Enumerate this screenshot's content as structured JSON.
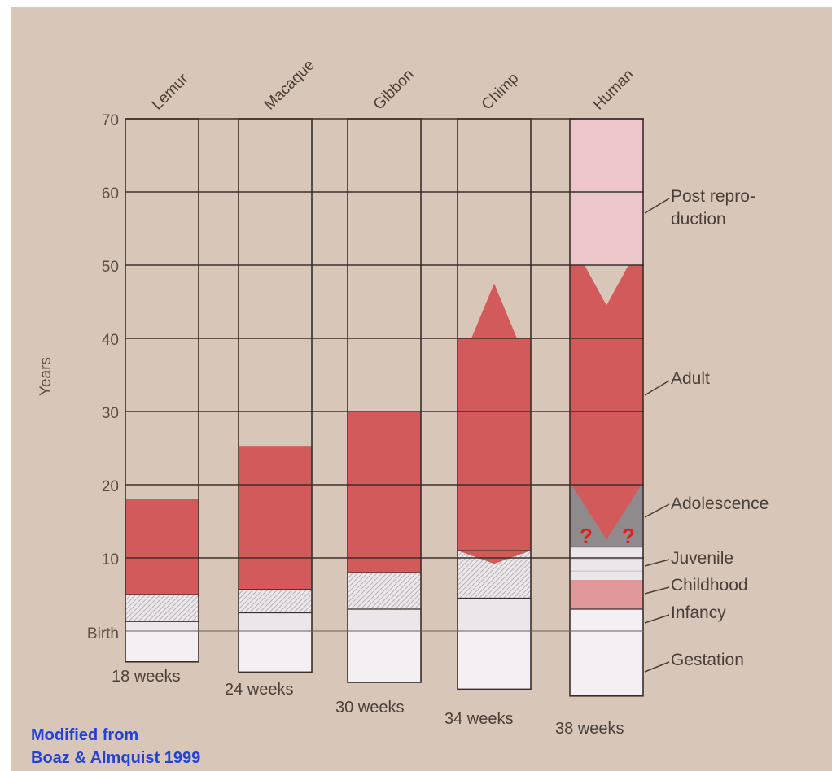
{
  "chart_data": {
    "type": "bar",
    "title": "",
    "ylabel": "Years",
    "ylim": [
      0,
      70
    ],
    "yticks": [
      "70",
      "60",
      "50",
      "40",
      "30",
      "20",
      "10"
    ],
    "birth_label": "Birth",
    "categories": [
      "Lemur",
      "Macaque",
      "Gibbon",
      "Chimp",
      "Human"
    ],
    "gestation_labels": [
      "18 weeks",
      "24 weeks",
      "30 weeks",
      "34 weeks",
      "38 weeks"
    ],
    "gestation_weeks": [
      18,
      24,
      30,
      34,
      38
    ],
    "stages": [
      "Post repro-\nduction",
      "Adult",
      "Adolescence",
      "Juvenile",
      "Childhood",
      "Infancy",
      "Gestation"
    ],
    "series": [
      {
        "name": "Infancy",
        "values": [
          1.3,
          2.5,
          3.0,
          4.5,
          3.0
        ]
      },
      {
        "name": "Juvenile",
        "values": [
          5.0,
          5.7,
          8.0,
          11.0,
          11.5
        ]
      },
      {
        "name": "Adult",
        "values": [
          18.0,
          25.2,
          30.0,
          40.0,
          50.0
        ]
      },
      {
        "name": "Post reproduction",
        "values": [
          0,
          0,
          0,
          0,
          70.0
        ]
      }
    ],
    "human_stage_bounds": {
      "infancy_end": 3.0,
      "childhood_end": 7.0,
      "juvenile_end": 11.5,
      "adolescence_end": 20.0,
      "adult_end": 50.0,
      "post_reproduction_end": 70.0
    },
    "question_marks": [
      "?",
      "?"
    ],
    "colors": {
      "background": "#d8c7b8",
      "adult": "#d35a5a",
      "gestation": "#f3eff2",
      "juvenile": "#eae6ea",
      "childhood": "#e0989a",
      "adolescence": "#8f8a8c",
      "post_reproduction": "#ecc6c9",
      "grid": "#3a302b",
      "source_text": "#2540d8"
    },
    "source": [
      "Modified from",
      "Boaz & Almquist 1999"
    ]
  }
}
